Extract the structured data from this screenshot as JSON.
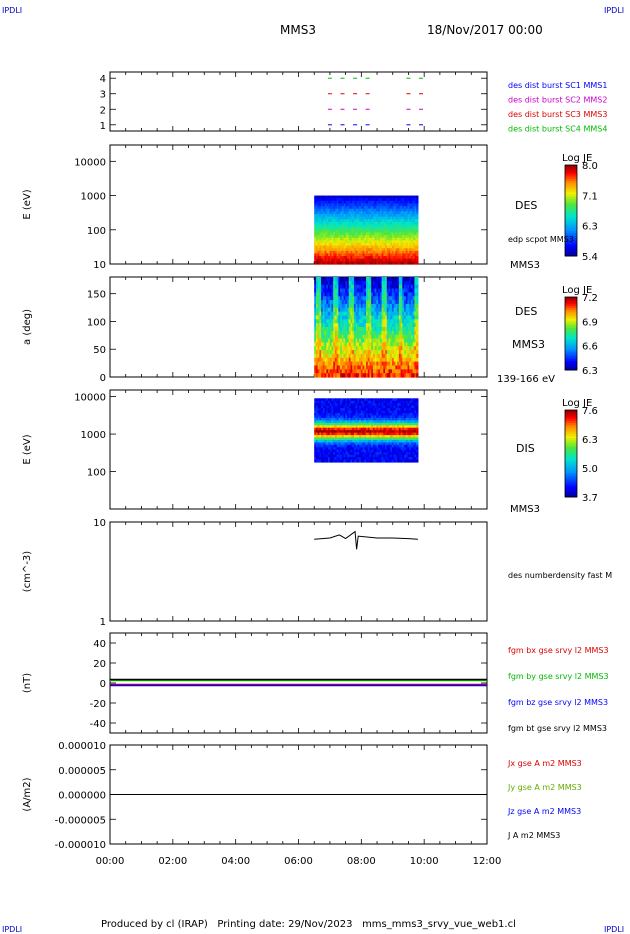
{
  "corners": {
    "tl": "IPDLI",
    "tr": "IPDLI",
    "bl": "IPDLI",
    "br": "IPDLI"
  },
  "header": {
    "spacecraft": "MMS3",
    "date": "18/Nov/2017 00:00"
  },
  "footer": {
    "produced_by": "Produced by cl (IRAP)",
    "printing_date": "Printing date: 29/Nov/2023",
    "script": "mms_mms3_srvy_vue_web1.cl"
  },
  "colors": {
    "sc1": "#0000ff",
    "sc2": "#cc00cc",
    "sc3": "#dd0000",
    "sc4": "#00bb00",
    "bx": "#dd0000",
    "by": "#00bb00",
    "bz": "#0000ff",
    "bt": "#000000"
  },
  "chart_data": [
    {
      "type": "scatter",
      "title": "",
      "ylabel": "",
      "ylim": [
        0.6,
        4.4
      ],
      "yticks": [
        "1",
        "2",
        "3",
        "4"
      ],
      "legend": [
        "des dist burst SC1 MMS1",
        "des dist burst SC2 MMS2",
        "des dist burst SC3 MMS3",
        "des dist burst SC4 MMS4"
      ],
      "series": [
        {
          "name": "des dist burst SC4 MMS4",
          "y": 4,
          "x_hours": [
            7.0,
            7.8,
            9.5
          ]
        },
        {
          "name": "des dist burst SC3 MMS3",
          "y": 3,
          "x_hours": [
            7.0,
            7.8,
            9.5
          ]
        },
        {
          "name": "des dist burst SC2 MMS2",
          "y": 2,
          "x_hours": [
            7.0,
            7.8,
            9.5
          ]
        },
        {
          "name": "des dist burst SC1 MMS1",
          "y": 1,
          "x_hours": [
            7.0,
            7.8,
            9.5
          ]
        }
      ]
    },
    {
      "type": "heatmap",
      "ylabel": "E (eV)",
      "yscale": "log",
      "ylim": [
        10,
        30000
      ],
      "yticks": [
        "10",
        "100",
        "1000",
        "10000"
      ],
      "x_range_hours": [
        6.5,
        9.8
      ],
      "y_range": [
        10,
        1000
      ],
      "label": "DES",
      "sublabel": "edp scpot MMS3",
      "bottom_label": "MMS3",
      "colorbar": {
        "title": "Log JE",
        "ticks": [
          "8.0",
          "7.1",
          "6.3",
          "5.4"
        ],
        "range": [
          5.4,
          8.0
        ]
      }
    },
    {
      "type": "heatmap",
      "ylabel": "a (deg)",
      "ylim": [
        0,
        180
      ],
      "yticks": [
        "0",
        "50",
        "100",
        "150"
      ],
      "x_range_hours": [
        6.5,
        9.8
      ],
      "label": "DES",
      "sublabel": "MMS3",
      "bottom_label": "139-166 eV",
      "colorbar": {
        "title": "Log JE",
        "ticks": [
          "7.2",
          "6.9",
          "6.6",
          "6.3"
        ],
        "range": [
          6.3,
          7.2
        ]
      }
    },
    {
      "type": "heatmap",
      "ylabel": "E (eV)",
      "yscale": "log",
      "ylim": [
        10,
        15000
      ],
      "yticks": [
        "100",
        "1000",
        "10000"
      ],
      "x_range_hours": [
        6.5,
        9.8
      ],
      "y_range": [
        180,
        9000
      ],
      "label": "DIS",
      "bottom_label": "MMS3",
      "colorbar": {
        "title": "Log JE",
        "ticks": [
          "7.6",
          "6.3",
          "5.0",
          "3.7"
        ],
        "range": [
          3.7,
          7.6
        ]
      }
    },
    {
      "type": "line",
      "ylabel": "(cm^-3)",
      "yscale": "log",
      "ylim": [
        1,
        10
      ],
      "yticks": [
        "1",
        "10"
      ],
      "legend": [
        "des numberdensity fast M"
      ],
      "series": [
        {
          "name": "des numberdensity fast M",
          "x_hours": [
            6.5,
            7.0,
            7.3,
            7.5,
            7.8,
            7.85,
            7.9,
            8.5,
            9.0,
            9.5,
            9.8
          ],
          "values": [
            6.7,
            6.9,
            7.4,
            6.8,
            8.0,
            5.3,
            7.2,
            6.9,
            6.9,
            6.8,
            6.7
          ]
        }
      ]
    },
    {
      "type": "line",
      "ylabel": "(nT)",
      "ylim": [
        -50,
        50
      ],
      "yticks": [
        "40",
        "20",
        "0",
        "-20",
        "-40"
      ],
      "legend": [
        "fgm bx gse srvy l2 MMS3",
        "fgm by gse srvy l2 MMS3",
        "fgm bz gse srvy l2 MMS3",
        "fgm bt gse srvy l2 MMS3"
      ],
      "series": [
        {
          "name": "fgm bx gse srvy l2 MMS3",
          "mean": -1.5
        },
        {
          "name": "fgm by gse srvy l2 MMS3",
          "mean": 2.5
        },
        {
          "name": "fgm bz gse srvy l2 MMS3",
          "mean": -2.5
        },
        {
          "name": "fgm bt gse srvy l2 MMS3",
          "mean": 3.5
        }
      ]
    },
    {
      "type": "line",
      "ylabel": "(A/m2)",
      "ylim": [
        -1e-05,
        1e-05
      ],
      "yticks": [
        "0.000010",
        "0.000005",
        "0.000000",
        "-0.000005",
        "-0.000010"
      ],
      "legend": [
        "Jx gse A m2 MMS3",
        "Jy gse A m2 MMS3",
        "Jz gse A m2 MMS3",
        "J A m2 MMS3"
      ],
      "series": [
        {
          "name": "J A m2 MMS3",
          "mean": 0
        }
      ]
    }
  ],
  "xaxis": {
    "ticks": [
      "00:00",
      "02:00",
      "04:00",
      "06:00",
      "08:00",
      "10:00",
      "12:00"
    ],
    "range_hours": [
      0,
      12
    ]
  }
}
